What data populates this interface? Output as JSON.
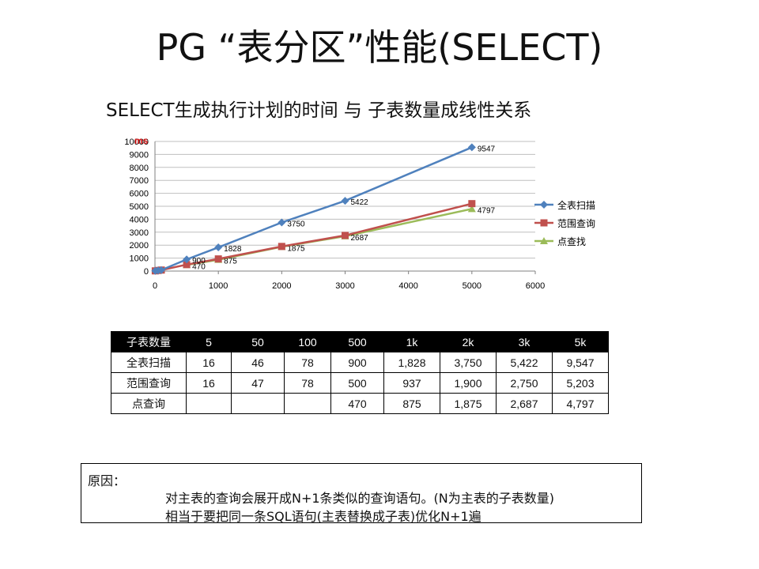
{
  "title": "PG “表分区”性能(SELECT)",
  "subtitle": "SELECT生成执行计划的时间 与 子表数量成线性关系",
  "chart_data": {
    "type": "line",
    "unit_label": "ms",
    "x": [
      5,
      50,
      100,
      500,
      1000,
      2000,
      3000,
      5000
    ],
    "xlim": [
      0,
      6000
    ],
    "xticks": [
      0,
      1000,
      2000,
      3000,
      4000,
      5000,
      6000
    ],
    "ylim": [
      0,
      10000
    ],
    "yticks": [
      0,
      1000,
      2000,
      3000,
      4000,
      5000,
      6000,
      7000,
      8000,
      9000,
      10000
    ],
    "grid": true,
    "legend_position": "right",
    "series": [
      {
        "name": "全表扫描",
        "color": "#4f81bd",
        "marker": "diamond",
        "values": [
          16,
          46,
          78,
          900,
          1828,
          3750,
          5422,
          9547
        ],
        "labels": [
          "",
          "",
          "",
          "900",
          "1828",
          "3750",
          "5422",
          "9547"
        ]
      },
      {
        "name": "范围查询",
        "color": "#c0504d",
        "marker": "square",
        "values": [
          16,
          47,
          78,
          500,
          937,
          1900,
          2750,
          5203
        ],
        "labels": [
          "",
          "",
          "",
          "",
          "",
          "",
          "",
          ""
        ]
      },
      {
        "name": "点查找",
        "color": "#9bbb59",
        "marker": "triangle",
        "values": [
          null,
          null,
          null,
          470,
          875,
          1875,
          2687,
          4797
        ],
        "labels": [
          "",
          "",
          "",
          "470",
          "875",
          "1875",
          "2687",
          "4797"
        ]
      }
    ]
  },
  "table": {
    "headers": [
      "子表数量",
      "5",
      "50",
      "100",
      "500",
      "1k",
      "2k",
      "3k",
      "5k"
    ],
    "rows": [
      [
        "全表扫描",
        "16",
        "46",
        "78",
        "900",
        "1,828",
        "3,750",
        "5,422",
        "9,547"
      ],
      [
        "范围查询",
        "16",
        "47",
        "78",
        "500",
        "937",
        "1,900",
        "2,750",
        "5,203"
      ],
      [
        "点查询",
        "",
        "",
        "",
        "470",
        "875",
        "1,875",
        "2,687",
        "4,797"
      ]
    ]
  },
  "reason": {
    "label": "原因：",
    "line1": "对主表的查询会展开成N+1条类似的查询语句。(N为主表的子表数量)",
    "line2": "相当于要把同一条SQL语句(主表替换成子表)优化N+1遍"
  }
}
